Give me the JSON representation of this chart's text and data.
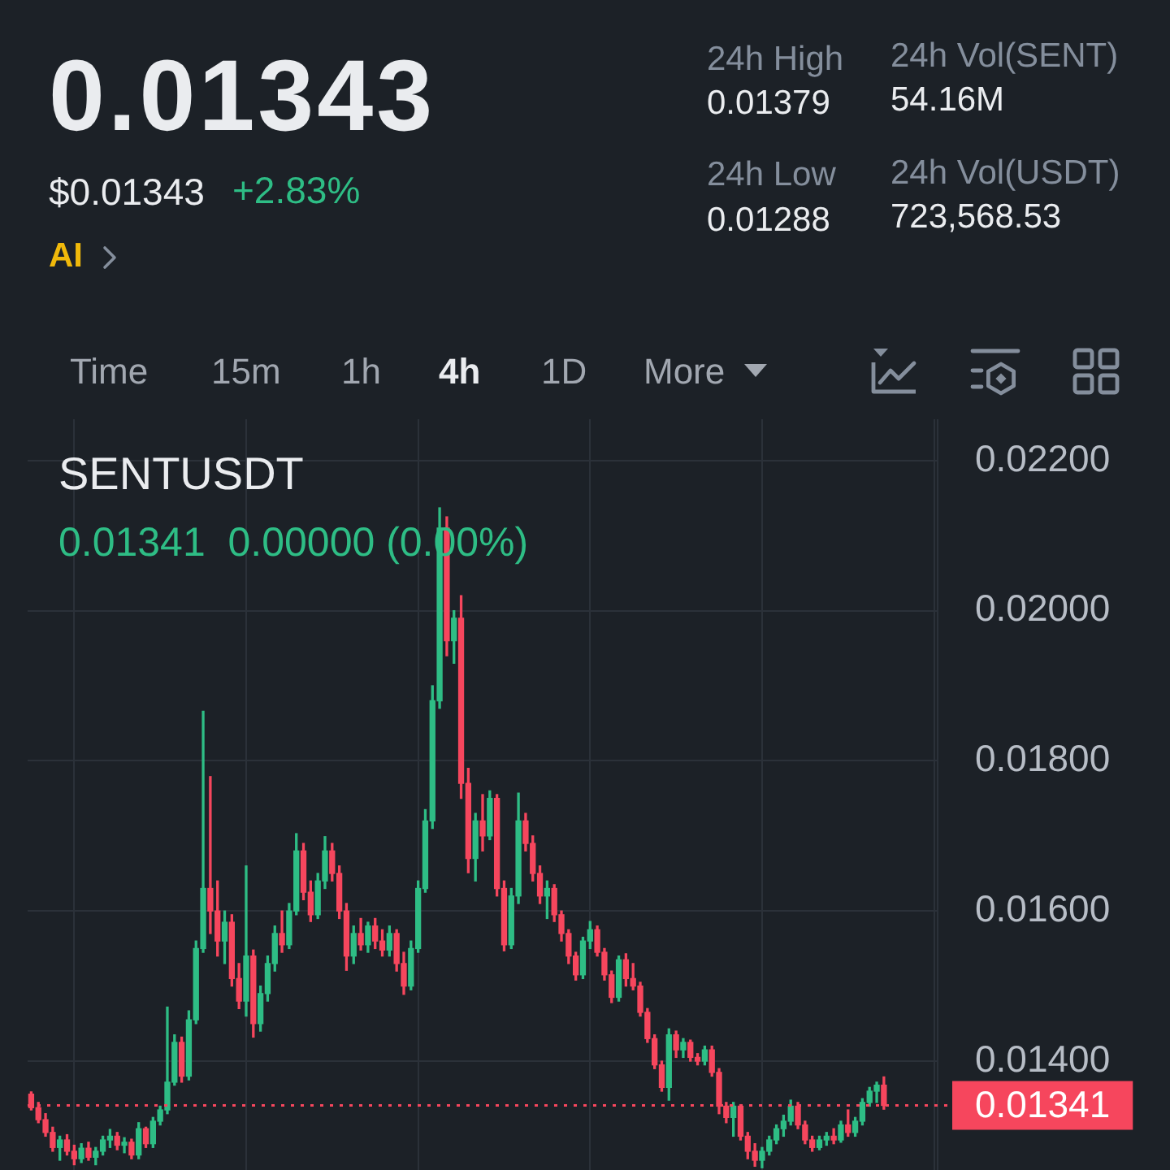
{
  "chart_data": {
    "type": "candlestick",
    "title": "SENTUSDT",
    "subtitle": "0.01341  0.00000 (0.00%)",
    "annotations": [
      "0.01343",
      "$0.01343",
      "+2.83%",
      "AI",
      "24h High",
      "0.01379",
      "24h Low",
      "0.01288",
      "24h Vol(SENT)",
      "54.16M",
      "24h Vol(USDT)",
      "723,568.53",
      "Time",
      "15m",
      "1h",
      "4h",
      "1D",
      "More"
    ],
    "categories": [
      null,
      null,
      null,
      null,
      null,
      null,
      null,
      null,
      null,
      null,
      null,
      null,
      null,
      null,
      null,
      null,
      null,
      null,
      null,
      null,
      null,
      null,
      null,
      null,
      null,
      null,
      null,
      null,
      null,
      null,
      null,
      null,
      null,
      null,
      null,
      null,
      null,
      null,
      null,
      null,
      null,
      null,
      null,
      null,
      null,
      null,
      null,
      null,
      null,
      null,
      null,
      null,
      null,
      null,
      null,
      null,
      null,
      null,
      null,
      null,
      null,
      null,
      null,
      null,
      null,
      null,
      null,
      null,
      null,
      null,
      null,
      null,
      null,
      null,
      null,
      null,
      null,
      null,
      null,
      null,
      null,
      null,
      null,
      null,
      null,
      null,
      null,
      null,
      null,
      null,
      null,
      null,
      null,
      null,
      null,
      null,
      null,
      null,
      null,
      null,
      null,
      null,
      null,
      null,
      null,
      null,
      null,
      null,
      null,
      null,
      null,
      null,
      null,
      null,
      null,
      null,
      null,
      null,
      null,
      null,
      null,
      null,
      null,
      null,
      null,
      null,
      null
    ],
    "ohlc": [
      [
        0.01356,
        0.01359,
        0.01335,
        0.01338
      ],
      [
        0.01338,
        0.01345,
        0.01318,
        0.01322
      ],
      [
        0.01322,
        0.0133,
        0.013,
        0.01305
      ],
      [
        0.01305,
        0.01312,
        0.0128,
        0.01285
      ],
      [
        0.01285,
        0.013,
        0.01268,
        0.01295
      ],
      [
        0.01295,
        0.01302,
        0.01275,
        0.0128
      ],
      [
        0.0128,
        0.01288,
        0.01262,
        0.0127
      ],
      [
        0.0127,
        0.0129,
        0.01265,
        0.01284
      ],
      [
        0.01284,
        0.01292,
        0.01268,
        0.01272
      ],
      [
        0.01272,
        0.01285,
        0.01262,
        0.0128
      ],
      [
        0.0128,
        0.013,
        0.01275,
        0.01295
      ],
      [
        0.01295,
        0.01309,
        0.01285,
        0.013
      ],
      [
        0.013,
        0.01305,
        0.01282,
        0.01288
      ],
      [
        0.01288,
        0.01298,
        0.01278,
        0.01292
      ],
      [
        0.01292,
        0.01296,
        0.0127,
        0.01275
      ],
      [
        0.01275,
        0.01318,
        0.0127,
        0.0131
      ],
      [
        0.0131,
        0.01312,
        0.01285,
        0.0129
      ],
      [
        0.0129,
        0.01325,
        0.01285,
        0.0132
      ],
      [
        0.0132,
        0.0134,
        0.01315,
        0.01335
      ],
      [
        0.01335,
        0.01472,
        0.0133,
        0.01372
      ],
      [
        0.01372,
        0.01435,
        0.01368,
        0.01425
      ],
      [
        0.01425,
        0.01432,
        0.01372,
        0.0138
      ],
      [
        0.0138,
        0.01467,
        0.01375,
        0.01455
      ],
      [
        0.01455,
        0.0156,
        0.0145,
        0.0155
      ],
      [
        0.0155,
        0.01866,
        0.01545,
        0.0163
      ],
      [
        0.0163,
        0.01779,
        0.0157,
        0.016
      ],
      [
        0.016,
        0.0164,
        0.0154,
        0.0156
      ],
      [
        0.0156,
        0.016,
        0.0153,
        0.01585
      ],
      [
        0.01585,
        0.01595,
        0.015,
        0.0151
      ],
      [
        0.0151,
        0.0153,
        0.0147,
        0.0148
      ],
      [
        0.0148,
        0.0166,
        0.0146,
        0.0154
      ],
      [
        0.0154,
        0.01548,
        0.01432,
        0.0145
      ],
      [
        0.0145,
        0.015,
        0.0144,
        0.0149
      ],
      [
        0.0149,
        0.0154,
        0.0148,
        0.0153
      ],
      [
        0.0153,
        0.0158,
        0.0152,
        0.0157
      ],
      [
        0.0157,
        0.016,
        0.01545,
        0.01555
      ],
      [
        0.01555,
        0.0161,
        0.0155,
        0.016
      ],
      [
        0.016,
        0.01703,
        0.01595,
        0.0168
      ],
      [
        0.0168,
        0.0169,
        0.01615,
        0.01625
      ],
      [
        0.01625,
        0.0164,
        0.01586,
        0.01595
      ],
      [
        0.01595,
        0.0165,
        0.0159,
        0.0164
      ],
      [
        0.0164,
        0.01699,
        0.0163,
        0.0168
      ],
      [
        0.0168,
        0.0169,
        0.0164,
        0.0165
      ],
      [
        0.0165,
        0.0166,
        0.0159,
        0.016
      ],
      [
        0.016,
        0.0161,
        0.01521,
        0.0154
      ],
      [
        0.0154,
        0.0158,
        0.0153,
        0.0157
      ],
      [
        0.0157,
        0.0159,
        0.01548,
        0.01555
      ],
      [
        0.01555,
        0.01585,
        0.01545,
        0.0158
      ],
      [
        0.0158,
        0.0159,
        0.0155,
        0.0156
      ],
      [
        0.0156,
        0.01575,
        0.0154,
        0.01548
      ],
      [
        0.01548,
        0.0158,
        0.0154,
        0.0157
      ],
      [
        0.0157,
        0.01575,
        0.0152,
        0.0153
      ],
      [
        0.0153,
        0.01545,
        0.01489,
        0.015
      ],
      [
        0.015,
        0.0156,
        0.01495,
        0.0155
      ],
      [
        0.0155,
        0.0164,
        0.01545,
        0.0163
      ],
      [
        0.0163,
        0.01735,
        0.01625,
        0.0172
      ],
      [
        0.0172,
        0.019,
        0.0171,
        0.0188
      ],
      [
        0.0188,
        0.02137,
        0.0187,
        0.0211
      ],
      [
        0.0211,
        0.02125,
        0.0194,
        0.0196
      ],
      [
        0.0196,
        0.02,
        0.0193,
        0.0199
      ],
      [
        0.0199,
        0.0202,
        0.0175,
        0.0177
      ],
      [
        0.0177,
        0.0179,
        0.01651,
        0.0167
      ],
      [
        0.0167,
        0.0173,
        0.0164,
        0.0172
      ],
      [
        0.0172,
        0.01755,
        0.0168,
        0.017
      ],
      [
        0.017,
        0.0176,
        0.01695,
        0.0175
      ],
      [
        0.0175,
        0.01755,
        0.0162,
        0.0163
      ],
      [
        0.0163,
        0.0164,
        0.01547,
        0.01555
      ],
      [
        0.01555,
        0.0163,
        0.0155,
        0.0162
      ],
      [
        0.0162,
        0.01757,
        0.0161,
        0.0172
      ],
      [
        0.0172,
        0.0173,
        0.0168,
        0.0169
      ],
      [
        0.0169,
        0.017,
        0.0164,
        0.0165
      ],
      [
        0.0165,
        0.0166,
        0.0161,
        0.0162
      ],
      [
        0.0162,
        0.0164,
        0.0159,
        0.0163
      ],
      [
        0.0163,
        0.01635,
        0.01586,
        0.01595
      ],
      [
        0.01595,
        0.016,
        0.0156,
        0.0157
      ],
      [
        0.0157,
        0.01575,
        0.0153,
        0.0154
      ],
      [
        0.0154,
        0.01545,
        0.01508,
        0.01515
      ],
      [
        0.01515,
        0.01565,
        0.0151,
        0.0156
      ],
      [
        0.0156,
        0.01586,
        0.0155,
        0.01575
      ],
      [
        0.01575,
        0.0158,
        0.0154,
        0.01545
      ],
      [
        0.01545,
        0.0155,
        0.01508,
        0.01515
      ],
      [
        0.01515,
        0.0152,
        0.01478,
        0.01485
      ],
      [
        0.01485,
        0.0154,
        0.0148,
        0.01535
      ],
      [
        0.01535,
        0.01543,
        0.015,
        0.0151
      ],
      [
        0.0151,
        0.0153,
        0.01495,
        0.015
      ],
      [
        0.015,
        0.01505,
        0.0146,
        0.01465
      ],
      [
        0.01465,
        0.0147,
        0.01425,
        0.0143
      ],
      [
        0.0143,
        0.01435,
        0.0139,
        0.01395
      ],
      [
        0.01395,
        0.014,
        0.0136,
        0.01365
      ],
      [
        0.01365,
        0.01443,
        0.01348,
        0.01435
      ],
      [
        0.01435,
        0.0144,
        0.01405,
        0.01415
      ],
      [
        0.01415,
        0.0143,
        0.01405,
        0.01425
      ],
      [
        0.01425,
        0.01428,
        0.014,
        0.01405
      ],
      [
        0.01405,
        0.0141,
        0.01395,
        0.014
      ],
      [
        0.014,
        0.0142,
        0.01395,
        0.01415
      ],
      [
        0.01415,
        0.0142,
        0.0138,
        0.01385
      ],
      [
        0.01385,
        0.0139,
        0.0133,
        0.0134
      ],
      [
        0.0134,
        0.01345,
        0.01318,
        0.01325
      ],
      [
        0.01325,
        0.01345,
        0.013,
        0.0134
      ],
      [
        0.0134,
        0.01342,
        0.01295,
        0.013
      ],
      [
        0.013,
        0.01305,
        0.0127,
        0.0128
      ],
      [
        0.0128,
        0.0129,
        0.0126,
        0.01268
      ],
      [
        0.01268,
        0.01285,
        0.01258,
        0.0128
      ],
      [
        0.0128,
        0.013,
        0.01275,
        0.01295
      ],
      [
        0.01295,
        0.01315,
        0.0129,
        0.0131
      ],
      [
        0.0131,
        0.01328,
        0.013,
        0.0132
      ],
      [
        0.0132,
        0.01348,
        0.01315,
        0.0134
      ],
      [
        0.0134,
        0.01345,
        0.0131,
        0.01315
      ],
      [
        0.01315,
        0.0132,
        0.0129,
        0.01295
      ],
      [
        0.01295,
        0.013,
        0.0128,
        0.01285
      ],
      [
        0.01285,
        0.013,
        0.01282,
        0.01295
      ],
      [
        0.01295,
        0.01305,
        0.01288,
        0.013
      ],
      [
        0.013,
        0.0131,
        0.0129,
        0.01295
      ],
      [
        0.01295,
        0.0132,
        0.01292,
        0.01315
      ],
      [
        0.01315,
        0.01335,
        0.013,
        0.01305
      ],
      [
        0.01305,
        0.01325,
        0.013,
        0.0132
      ],
      [
        0.0132,
        0.0135,
        0.01315,
        0.01345
      ],
      [
        0.01345,
        0.01365,
        0.0134,
        0.0136
      ],
      [
        0.0136,
        0.01372,
        0.01345,
        0.01368
      ],
      [
        0.01368,
        0.01379,
        0.01336,
        0.01341
      ],
      null,
      null,
      null,
      null,
      null,
      null,
      null
    ],
    "colors": [
      "#f6465d",
      "#f6465d",
      "#f6465d",
      "#f6465d",
      "#2ebd85",
      "#f6465d",
      "#f6465d",
      "#2ebd85",
      "#f6465d",
      "#2ebd85",
      "#2ebd85",
      "#2ebd85",
      "#f6465d",
      "#2ebd85",
      "#f6465d",
      "#2ebd85",
      "#f6465d",
      "#2ebd85",
      "#2ebd85",
      "#2ebd85",
      "#2ebd85",
      "#f6465d",
      "#2ebd85",
      "#2ebd85",
      "#2ebd85",
      "#f6465d",
      "#f6465d",
      "#2ebd85",
      "#f6465d",
      "#f6465d",
      "#2ebd85",
      "#f6465d",
      "#2ebd85",
      "#2ebd85",
      "#2ebd85",
      "#f6465d",
      "#2ebd85",
      "#2ebd85",
      "#f6465d",
      "#f6465d",
      "#2ebd85",
      "#2ebd85",
      "#f6465d",
      "#f6465d",
      "#f6465d",
      "#2ebd85",
      "#f6465d",
      "#2ebd85",
      "#f6465d",
      "#f6465d",
      "#2ebd85",
      "#f6465d",
      "#f6465d",
      "#2ebd85",
      "#2ebd85",
      "#2ebd85",
      "#2ebd85",
      "#2ebd85",
      "#f6465d",
      "#2ebd85",
      "#f6465d",
      "#f6465d",
      "#2ebd85",
      "#f6465d",
      "#2ebd85",
      "#f6465d",
      "#f6465d",
      "#2ebd85",
      "#2ebd85",
      "#f6465d",
      "#f6465d",
      "#f6465d",
      "#2ebd85",
      "#f6465d",
      "#f6465d",
      "#f6465d",
      "#f6465d",
      "#2ebd85",
      "#2ebd85",
      "#f6465d",
      "#f6465d",
      "#f6465d",
      "#2ebd85",
      "#f6465d",
      "#f6465d",
      "#f6465d",
      "#f6465d",
      "#f6465d",
      "#f6465d",
      "#2ebd85",
      "#f6465d",
      "#2ebd85",
      "#f6465d",
      "#f6465d",
      "#2ebd85",
      "#f6465d",
      "#f6465d",
      "#f6465d",
      "#2ebd85",
      "#f6465d",
      "#f6465d",
      "#f6465d",
      "#2ebd85",
      "#2ebd85",
      "#2ebd85",
      "#2ebd85",
      "#2ebd85",
      "#f6465d",
      "#f6465d",
      "#f6465d",
      "#2ebd85",
      "#2ebd85",
      "#f6465d",
      "#2ebd85",
      "#f6465d",
      "#2ebd85",
      "#2ebd85",
      "#2ebd85",
      "#2ebd85",
      "#f6465d",
      null,
      null,
      null,
      null,
      null,
      null,
      null
    ],
    "ylim": [
      0.01255,
      0.02255
    ],
    "yticks": [
      {
        "value": 0.014,
        "label": "0.01400"
      },
      {
        "value": 0.016,
        "label": "0.01600"
      },
      {
        "value": 0.018,
        "label": "0.01800"
      },
      {
        "value": 0.02,
        "label": "0.02000"
      },
      {
        "value": 0.022,
        "label": "0.02200"
      }
    ],
    "grid": true,
    "tick_labels": "y",
    "ref_lines": [
      {
        "axis": "y",
        "value": 0.01341,
        "label": "0.01341",
        "color": "#f6465d",
        "line_style": "dotted"
      }
    ]
  }
}
